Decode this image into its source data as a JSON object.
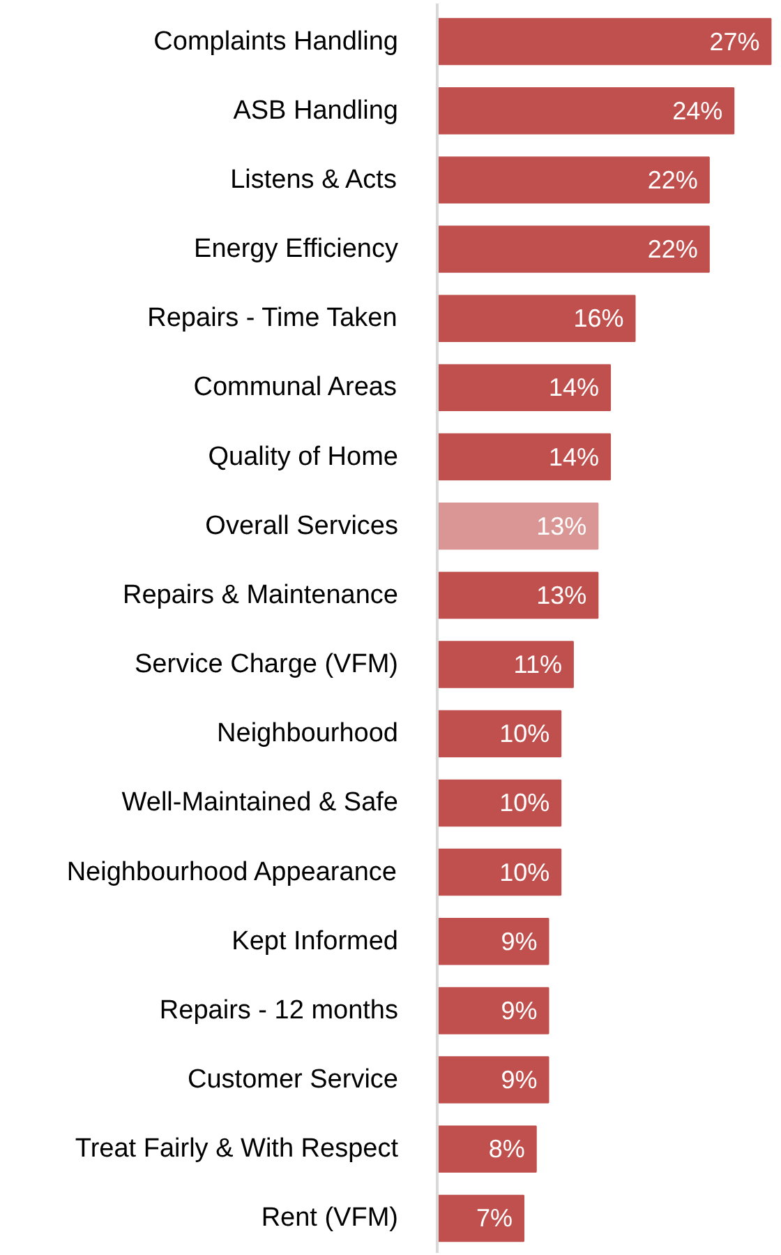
{
  "chart_data": {
    "type": "bar",
    "orientation": "horizontal",
    "categories": [
      "Complaints Handling",
      "ASB Handling",
      "Listens & Acts",
      "Energy Efficiency",
      "Repairs - Time Taken",
      "Communal Areas",
      "Quality of Home",
      "Overall Services",
      "Repairs & Maintenance",
      "Service Charge (VFM)",
      "Neighbourhood",
      "Well-Maintained & Safe",
      "Neighbourhood Appearance",
      "Kept Informed",
      "Repairs - 12 months",
      "Customer Service",
      "Treat Fairly & With Respect",
      "Rent (VFM)"
    ],
    "values": [
      27,
      24,
      22,
      22,
      16,
      14,
      14,
      13,
      13,
      11,
      10,
      10,
      10,
      9,
      9,
      9,
      8,
      7
    ],
    "value_labels": [
      "27%",
      "24%",
      "22%",
      "22%",
      "16%",
      "14%",
      "14%",
      "13%",
      "13%",
      "11%",
      "10%",
      "10%",
      "10%",
      "9%",
      "9%",
      "9%",
      "8%",
      "7%"
    ],
    "colors": [
      "#c0504d",
      "#c0504d",
      "#c0504d",
      "#c0504d",
      "#c0504d",
      "#c0504d",
      "#c0504d",
      "#d99694",
      "#c0504d",
      "#c0504d",
      "#c0504d",
      "#c0504d",
      "#c0504d",
      "#c0504d",
      "#c0504d",
      "#c0504d",
      "#c0504d",
      "#c0504d"
    ]
  }
}
